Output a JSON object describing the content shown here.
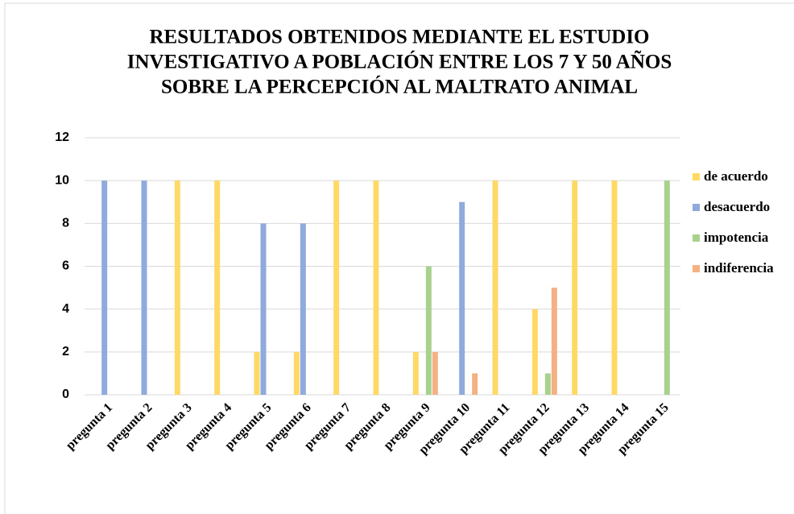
{
  "chart_data": {
    "type": "bar",
    "title": [
      "RESULTADOS OBTENIDOS MEDIANTE EL ESTUDIO",
      "INVESTIGATIVO A POBLACIÓN ENTRE LOS 7 Y 50 AÑOS",
      "SOBRE LA PERCEPCIÓN AL MALTRATO ANIMAL"
    ],
    "categories": [
      "pregunta 1",
      "pregunta 2",
      "pregunta 3",
      "pregunta 4",
      "pregunta 5",
      "pregunta 6",
      "pregunta 7",
      "pregunta 8",
      "pregunta 9",
      "pregunta 10",
      "pregunta 11",
      "pregunta 12",
      "pregunta 13",
      "pregunta 14",
      "pregunta 15"
    ],
    "series": [
      {
        "name": "de acuerdo",
        "color": "#ffd966",
        "values": [
          0,
          0,
          10,
          10,
          2,
          2,
          10,
          10,
          2,
          0,
          10,
          4,
          10,
          10,
          0
        ]
      },
      {
        "name": "desacuerdo",
        "color": "#8faadc",
        "values": [
          10,
          10,
          0,
          0,
          8,
          8,
          0,
          0,
          0,
          9,
          0,
          0,
          0,
          0,
          0
        ]
      },
      {
        "name": "impotencia",
        "color": "#a9d18e",
        "values": [
          0,
          0,
          0,
          0,
          0,
          0,
          0,
          0,
          6,
          0,
          0,
          1,
          0,
          0,
          10
        ]
      },
      {
        "name": "indiferencia",
        "color": "#f4b183",
        "values": [
          0,
          0,
          0,
          0,
          0,
          0,
          0,
          0,
          2,
          1,
          0,
          5,
          0,
          0,
          0
        ]
      }
    ],
    "ylim": [
      0,
      12
    ],
    "yticks": [
      0,
      2,
      4,
      6,
      8,
      10,
      12
    ],
    "grid": true,
    "legend": "right"
  }
}
